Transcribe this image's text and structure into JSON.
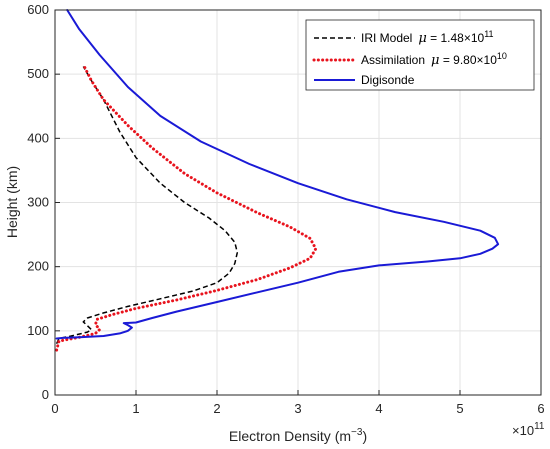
{
  "chart_data": {
    "type": "line",
    "xlabel": "Electron Density (m",
    "xlabel_sup": "−3",
    "xlabel_close": ")",
    "ylabel": "Height (km)",
    "x_exponent_base": "×10",
    "x_exponent_power": "11",
    "xlim": [
      0,
      6
    ],
    "ylim": [
      0,
      600
    ],
    "x_ticks": [
      "0",
      "1",
      "2",
      "3",
      "4",
      "5",
      "6"
    ],
    "y_ticks": [
      "0",
      "100",
      "200",
      "300",
      "400",
      "500",
      "600"
    ],
    "grid": true,
    "legend_position": "top-right",
    "series": [
      {
        "name": "IRI Model",
        "mu_symbol": "μ",
        "mu_text": " = 1.48×10",
        "mu_power": "11",
        "color": "#000000",
        "style": "dashed",
        "points": [
          [
            0.02,
            80
          ],
          [
            0.05,
            88
          ],
          [
            0.2,
            92
          ],
          [
            0.4,
            98
          ],
          [
            0.45,
            102
          ],
          [
            0.4,
            108
          ],
          [
            0.35,
            114
          ],
          [
            0.4,
            120
          ],
          [
            0.6,
            128
          ],
          [
            0.9,
            138
          ],
          [
            1.3,
            150
          ],
          [
            1.7,
            162
          ],
          [
            2.0,
            175
          ],
          [
            2.15,
            190
          ],
          [
            2.22,
            205
          ],
          [
            2.25,
            222
          ],
          [
            2.22,
            238
          ],
          [
            2.1,
            256
          ],
          [
            1.9,
            276
          ],
          [
            1.6,
            300
          ],
          [
            1.3,
            330
          ],
          [
            1.0,
            370
          ],
          [
            0.8,
            410
          ],
          [
            0.6,
            460
          ],
          [
            0.45,
            490
          ],
          [
            0.35,
            512
          ]
        ]
      },
      {
        "name": "Assimilation",
        "mu_symbol": "μ",
        "mu_text": " = 9.80×10",
        "mu_power": "10",
        "color": "#e8141e",
        "style": "dotted",
        "points": [
          [
            0.02,
            70
          ],
          [
            0.05,
            84
          ],
          [
            0.3,
            90
          ],
          [
            0.5,
            96
          ],
          [
            0.55,
            102
          ],
          [
            0.5,
            110
          ],
          [
            0.52,
            118
          ],
          [
            0.7,
            125
          ],
          [
            1.0,
            135
          ],
          [
            1.5,
            148
          ],
          [
            2.0,
            163
          ],
          [
            2.5,
            180
          ],
          [
            2.9,
            198
          ],
          [
            3.15,
            213
          ],
          [
            3.22,
            228
          ],
          [
            3.15,
            244
          ],
          [
            2.9,
            262
          ],
          [
            2.5,
            284
          ],
          [
            2.0,
            315
          ],
          [
            1.6,
            345
          ],
          [
            1.2,
            385
          ],
          [
            0.9,
            420
          ],
          [
            0.6,
            460
          ],
          [
            0.45,
            490
          ],
          [
            0.35,
            515
          ]
        ]
      },
      {
        "name": "Digisonde",
        "color": "#1a1ad6",
        "style": "solid",
        "points": [
          [
            0.02,
            88
          ],
          [
            0.1,
            89
          ],
          [
            0.3,
            90
          ],
          [
            0.6,
            92
          ],
          [
            0.8,
            96
          ],
          [
            0.9,
            100
          ],
          [
            0.95,
            105
          ],
          [
            0.9,
            109
          ],
          [
            0.85,
            112
          ],
          [
            1.0,
            113
          ],
          [
            1.2,
            120
          ],
          [
            1.5,
            130
          ],
          [
            2.0,
            145
          ],
          [
            2.5,
            160
          ],
          [
            3.0,
            175
          ],
          [
            3.5,
            192
          ],
          [
            4.0,
            202
          ],
          [
            4.6,
            208
          ],
          [
            5.0,
            213
          ],
          [
            5.25,
            220
          ],
          [
            5.4,
            228
          ],
          [
            5.47,
            235
          ],
          [
            5.43,
            245
          ],
          [
            5.25,
            256
          ],
          [
            4.8,
            270
          ],
          [
            4.2,
            285
          ],
          [
            3.6,
            305
          ],
          [
            3.0,
            330
          ],
          [
            2.4,
            360
          ],
          [
            1.8,
            395
          ],
          [
            1.3,
            435
          ],
          [
            0.9,
            480
          ],
          [
            0.55,
            530
          ],
          [
            0.3,
            570
          ],
          [
            0.15,
            600
          ]
        ]
      }
    ]
  }
}
